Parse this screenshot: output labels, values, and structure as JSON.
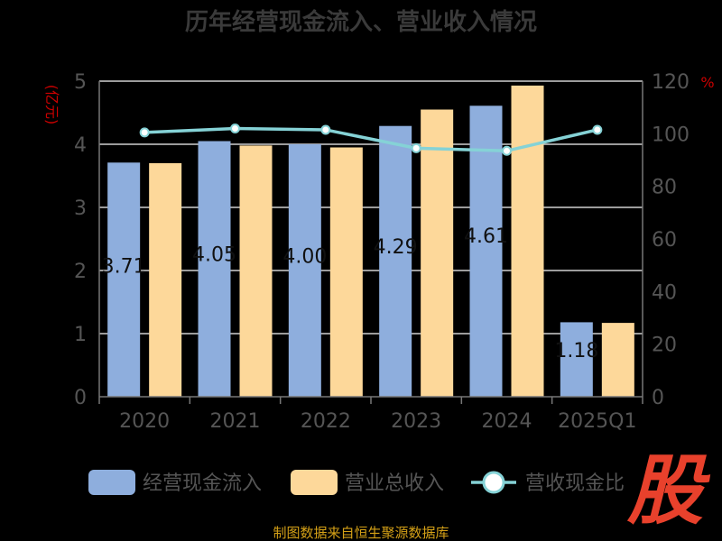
{
  "colors": {
    "cash_inflow": "#8eaedd",
    "revenue": "#fdd89a",
    "ratio_line": "#85d2d6",
    "axis": "#777777",
    "grid": "#cfcfcf",
    "unit": "#cc0000",
    "source": "#d4a017",
    "brand": "#e8412c"
  },
  "chart_data": {
    "type": "bar",
    "title": "历年经营现金流入、营业收入情况",
    "categories": [
      "2020",
      "2021",
      "2022",
      "2023",
      "2024",
      "2025Q1"
    ],
    "series": [
      {
        "name": "经营现金流入",
        "kind": "bar",
        "axis": "left",
        "values": [
          3.71,
          4.05,
          4.0,
          4.29,
          4.61,
          1.18
        ],
        "labels": [
          "3.71",
          "4.05",
          "4.00",
          "4.29",
          "4.61",
          "1.18"
        ]
      },
      {
        "name": "营业总收入",
        "kind": "bar",
        "axis": "left",
        "values": [
          3.7,
          3.98,
          3.95,
          4.55,
          4.93,
          1.17
        ]
      },
      {
        "name": "营收现金比",
        "kind": "line",
        "axis": "right",
        "values": [
          100.5,
          102.0,
          101.5,
          94.5,
          93.5,
          101.5
        ]
      }
    ],
    "left_axis": {
      "unit": "(亿元)",
      "ylim": [
        0,
        5
      ],
      "ticks": [
        "0",
        "1",
        "2",
        "3",
        "4",
        "5"
      ]
    },
    "right_axis": {
      "unit": "%",
      "ylim": [
        0,
        120
      ],
      "ticks": [
        "0",
        "20",
        "40",
        "60",
        "80",
        "100",
        "120"
      ]
    },
    "grid": true,
    "legend_position": "bottom"
  },
  "footer": {
    "source": "制图数据来自恒生聚源数据库"
  },
  "brand": {
    "glyph": "股"
  }
}
